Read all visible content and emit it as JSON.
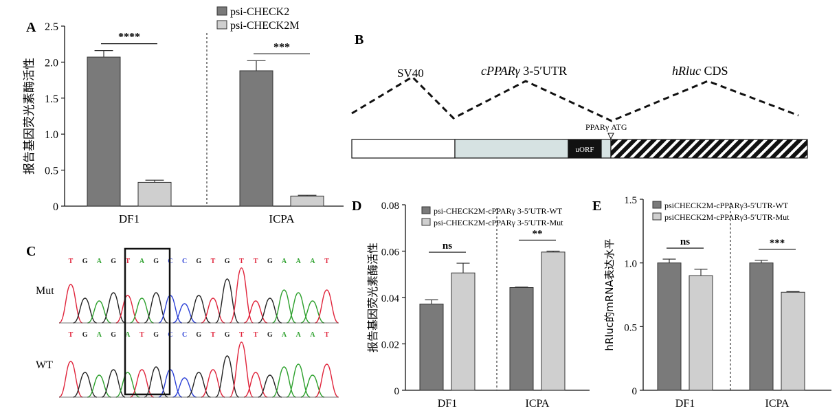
{
  "colors": {
    "dark": "#7a7a7a",
    "light": "#cfcfcf",
    "construct_light": "#d6e2e2",
    "black": "#111111"
  },
  "panelA": {
    "label": "A",
    "legend": [
      "psi-CHECK2",
      "psi-CHECK2M"
    ],
    "chart_data": {
      "type": "bar",
      "categories": [
        "DF1",
        "ICPA"
      ],
      "series": [
        {
          "name": "psi-CHECK2",
          "values": [
            2.07,
            1.88
          ],
          "errors": [
            0.09,
            0.14
          ]
        },
        {
          "name": "psi-CHECK2M",
          "values": [
            0.33,
            0.14
          ],
          "errors": [
            0.03,
            0.01
          ]
        }
      ],
      "ylabel": "报告基因荧光素酶活性",
      "ylim": [
        0,
        2.5
      ],
      "yticks": [
        "0",
        "0.5",
        "1.0",
        "1.5",
        "2.0",
        "2.5"
      ],
      "significance": [
        "****",
        "***"
      ]
    }
  },
  "panelB": {
    "label": "B",
    "segments": [
      "SV40",
      "cPPARγ 3-5′UTR",
      "hRluc CDS"
    ],
    "segment_parts": {
      "italic": "cPPARγ",
      "rest": " 3-5′UTR",
      "italic2": "hRluc",
      "rest2": " CDS"
    },
    "atg_label": "PPARγ ATG",
    "uorf_label": "uORF"
  },
  "panelC": {
    "label": "C",
    "rows": [
      {
        "name": "Mut",
        "bases": [
          "T",
          "G",
          "A",
          "G",
          "T",
          "A",
          "G",
          "C",
          "C",
          "G",
          "T",
          "G",
          "T",
          "T",
          "G",
          "A",
          "A",
          "A",
          "T"
        ]
      },
      {
        "name": "WT",
        "bases": [
          "T",
          "G",
          "A",
          "G",
          "A",
          "T",
          "G",
          "C",
          "C",
          "G",
          "T",
          "G",
          "T",
          "T",
          "G",
          "A",
          "A",
          "A",
          "T"
        ]
      }
    ]
  },
  "panelD": {
    "label": "D",
    "legend": [
      "psi-CHECK2M-cPPARγ 3-5′UTR-WT",
      "psi-CHECK2M-cPPARγ 3-5′UTR-Mut"
    ],
    "chart_data": {
      "type": "bar",
      "categories": [
        "DF1",
        "ICPA"
      ],
      "series": [
        {
          "name": "psi-CHECK2M-cPPARγ 3-5′UTR-WT",
          "values": [
            0.0372,
            0.0443
          ],
          "errors": [
            0.0018,
            0.0002
          ]
        },
        {
          "name": "psi-CHECK2M-cPPARγ 3-5′UTR-Mut",
          "values": [
            0.0506,
            0.0596
          ],
          "errors": [
            0.0042,
            0.0004
          ]
        }
      ],
      "ylabel": "报告基因荧光素酶活性",
      "ylim": [
        0,
        0.08
      ],
      "yticks": [
        "0",
        "0.02",
        "0.04",
        "0.06",
        "0.08"
      ],
      "significance": [
        "ns",
        "**"
      ]
    }
  },
  "panelE": {
    "label": "E",
    "legend": [
      "psiCHECK2M-cPPARγ3-5′UTR-WT",
      "psiCHECK2M-cPPARγ3-5′UTR-Mut"
    ],
    "chart_data": {
      "type": "bar",
      "categories": [
        "DF1",
        "ICPA"
      ],
      "series": [
        {
          "name": "psiCHECK2M-cPPARγ3-5′UTR-WT",
          "values": [
            1.0,
            1.0
          ],
          "errors": [
            0.03,
            0.02
          ]
        },
        {
          "name": "psiCHECK2M-cPPARγ3-5′UTR-Mut",
          "values": [
            0.9,
            0.77
          ],
          "errors": [
            0.05,
            0.005
          ]
        }
      ],
      "ylabel": "hRluc的mRNA表达水平",
      "ylim": [
        0,
        1.5
      ],
      "yticks": [
        "0",
        "0.5",
        "1.0",
        "1.5"
      ],
      "significance": [
        "ns",
        "***"
      ]
    }
  }
}
